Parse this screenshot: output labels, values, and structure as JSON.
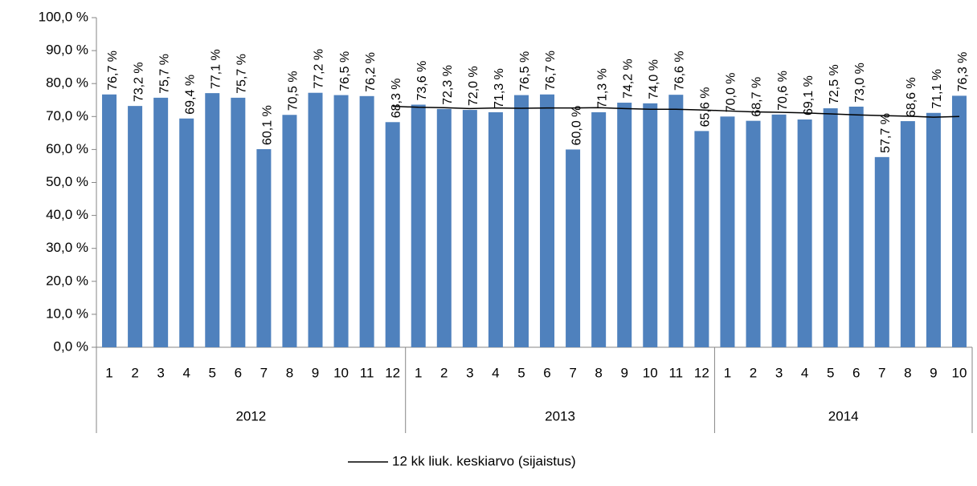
{
  "chart_data": {
    "type": "bar",
    "groups": [
      {
        "label": "2012",
        "categories": [
          "1",
          "2",
          "3",
          "4",
          "5",
          "6",
          "7",
          "8",
          "9",
          "10",
          "11",
          "12"
        ]
      },
      {
        "label": "2013",
        "categories": [
          "1",
          "2",
          "3",
          "4",
          "5",
          "6",
          "7",
          "8",
          "9",
          "10",
          "11",
          "12"
        ]
      },
      {
        "label": "2014",
        "categories": [
          "1",
          "2",
          "3",
          "4",
          "5",
          "6",
          "7",
          "8",
          "9",
          "10"
        ]
      }
    ],
    "values": [
      76.7,
      73.2,
      75.7,
      69.4,
      77.1,
      75.7,
      60.1,
      70.5,
      77.2,
      76.5,
      76.2,
      68.3,
      73.6,
      72.3,
      72.0,
      71.3,
      76.5,
      76.7,
      60.0,
      71.3,
      74.2,
      74.0,
      76.6,
      65.6,
      70.0,
      68.7,
      70.6,
      69.1,
      72.5,
      73.0,
      57.7,
      68.6,
      71.1,
      76.3
    ],
    "value_labels": [
      "76,7 %",
      "73,2 %",
      "75,7 %",
      "69,4 %",
      "77,1 %",
      "75,7 %",
      "60,1 %",
      "70,5 %",
      "77,2 %",
      "76,5 %",
      "76,2 %",
      "68,3 %",
      "73,6 %",
      "72,3 %",
      "72,0 %",
      "71,3 %",
      "76,5 %",
      "76,7 %",
      "60,0 %",
      "71,3 %",
      "74,2 %",
      "74,0 %",
      "76,6 %",
      "65,6 %",
      "70,0 %",
      "68,7 %",
      "70,6 %",
      "69,1 %",
      "72,5 %",
      "73,0 %",
      "57,7 %",
      "68,6 %",
      "71,1 %",
      "76,3 %"
    ],
    "color": "#4f81bd",
    "line": {
      "name": "12 kk liuk. keskiarvo (sijaistus)",
      "color": "#000000",
      "values": [
        null,
        null,
        null,
        null,
        null,
        null,
        null,
        null,
        null,
        null,
        null,
        73.1,
        72.8,
        72.7,
        72.4,
        72.6,
        72.5,
        72.6,
        72.6,
        72.7,
        72.4,
        72.2,
        72.2,
        72.0,
        71.7,
        71.4,
        71.3,
        71.1,
        70.8,
        70.5,
        70.3,
        70.1,
        69.8,
        70.0
      ]
    },
    "ylim": [
      0,
      100
    ],
    "yticks": [
      {
        "value": 0,
        "label": "0,0 %"
      },
      {
        "value": 10,
        "label": "10,0 %"
      },
      {
        "value": 20,
        "label": "20,0 %"
      },
      {
        "value": 30,
        "label": "30,0 %"
      },
      {
        "value": 40,
        "label": "40,0 %"
      },
      {
        "value": 50,
        "label": "50,0 %"
      },
      {
        "value": 60,
        "label": "60,0 %"
      },
      {
        "value": 70,
        "label": "70,0 %"
      },
      {
        "value": 80,
        "label": "80,0 %"
      },
      {
        "value": 90,
        "label": "90,0 %"
      },
      {
        "value": 100,
        "label": "100,0 %"
      }
    ],
    "legend": "bottom"
  }
}
